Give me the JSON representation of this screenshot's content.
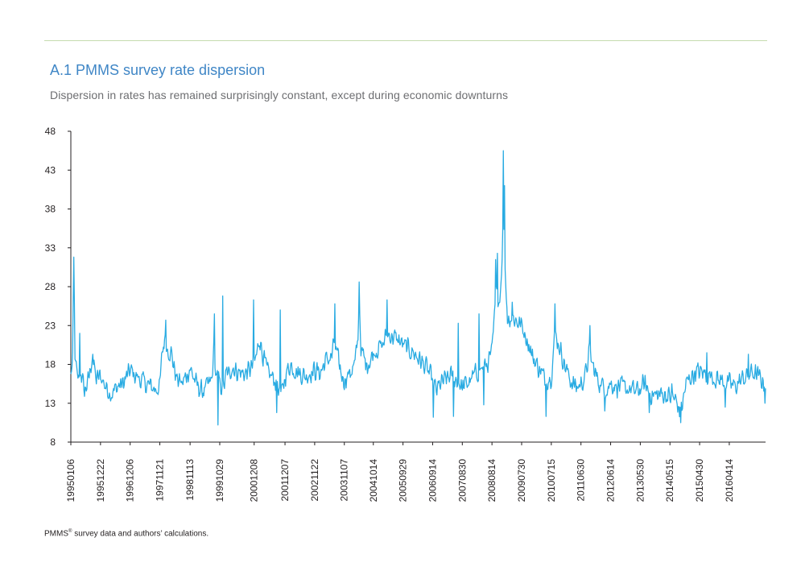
{
  "title": "A.1 PMMS survey rate dispersion",
  "subtitle": "Dispersion in rates has remained surprisingly constant, except during economic downturns",
  "source": {
    "prefix": "PMMS",
    "superscript": "®",
    "suffix": " survey data and authors’ calculations."
  },
  "colors": {
    "series": "#29abe2",
    "title": "#3f86c6",
    "rule": "#c5dcae",
    "axis": "#231f20"
  },
  "chart_data": {
    "type": "line",
    "title": "A.1 PMMS survey rate dispersion",
    "subtitle": "Dispersion in rates has remained surprisingly constant, except during economic downturns",
    "xlabel": "",
    "ylabel": "",
    "ylim": [
      8,
      48
    ],
    "yticks": [
      8,
      13,
      18,
      23,
      28,
      33,
      38,
      43,
      48
    ],
    "xlim": [
      "1995-01-06",
      "2017-06-16"
    ],
    "xtick_labels": [
      "19950106",
      "19951222",
      "19961206",
      "19971121",
      "19981113",
      "19991029",
      "20001208",
      "20011207",
      "20021122",
      "20031107",
      "20041014",
      "20050929",
      "20060914",
      "20070830",
      "20080814",
      "20090730",
      "20100715",
      "20110630",
      "20120614",
      "20130530",
      "20140515",
      "20150430",
      "20160414"
    ],
    "grid": false,
    "legend": "none",
    "frequency": "weekly",
    "series": [
      {
        "anchors": [
          [
            "1995-01-06",
            16.5
          ],
          [
            "1995-01-27",
            18.5
          ],
          [
            "1995-02-10",
            31.5
          ],
          [
            "1995-02-24",
            19
          ],
          [
            "1995-03-24",
            16
          ],
          [
            "1995-05-05",
            17
          ],
          [
            "1995-06-16",
            14.5
          ],
          [
            "1995-08-04",
            16
          ],
          [
            "1995-09-15",
            19
          ],
          [
            "1995-11-03",
            16
          ],
          [
            "1995-12-22",
            16.5
          ],
          [
            "1996-03-01",
            15
          ],
          [
            "1996-05-03",
            14.2
          ],
          [
            "1996-07-12",
            15.2
          ],
          [
            "1996-09-13",
            15.5
          ],
          [
            "1996-11-15",
            16.8
          ],
          [
            "1996-12-06",
            17.2
          ],
          [
            "1997-02-14",
            16.5
          ],
          [
            "1997-05-02",
            15.8
          ],
          [
            "1997-07-25",
            15.2
          ],
          [
            "1997-10-03",
            14.8
          ],
          [
            "1997-11-21",
            15.2
          ],
          [
            "1997-12-19",
            19.5
          ],
          [
            "1998-01-23",
            21.5
          ],
          [
            "1998-02-20",
            20
          ],
          [
            "1998-04-03",
            19.5
          ],
          [
            "1998-06-05",
            16.2
          ],
          [
            "1998-08-14",
            15.5
          ],
          [
            "1998-10-09",
            16.8
          ],
          [
            "1998-11-13",
            17.5
          ],
          [
            "1999-01-22",
            15.5
          ],
          [
            "1999-04-02",
            14.5
          ],
          [
            "1999-06-11",
            15.2
          ],
          [
            "1999-07-30",
            16
          ],
          [
            "1999-08-20",
            20
          ],
          [
            "1999-09-10",
            17
          ],
          [
            "1999-10-29",
            15.5
          ],
          [
            "1999-12-10",
            14.8
          ],
          [
            "2000-01-21",
            17
          ],
          [
            "2000-02-18",
            16.5
          ],
          [
            "2000-03-17",
            17.8
          ],
          [
            "2000-06-02",
            17
          ],
          [
            "2000-08-25",
            16.8
          ],
          [
            "2000-11-03",
            17.5
          ],
          [
            "2000-12-08",
            18
          ],
          [
            "2001-01-12",
            19.5
          ],
          [
            "2001-02-09",
            21.5
          ],
          [
            "2001-03-16",
            19.5
          ],
          [
            "2001-05-11",
            17
          ],
          [
            "2001-08-10",
            16
          ],
          [
            "2001-10-05",
            14.5
          ],
          [
            "2001-11-02",
            14.2
          ],
          [
            "2001-12-07",
            16.5
          ],
          [
            "2002-02-08",
            18
          ],
          [
            "2002-05-03",
            17
          ],
          [
            "2002-08-09",
            16.5
          ],
          [
            "2002-10-04",
            17
          ],
          [
            "2002-11-22",
            17.2
          ],
          [
            "2003-01-31",
            17
          ],
          [
            "2003-04-04",
            18.5
          ],
          [
            "2003-06-13",
            19
          ],
          [
            "2003-07-11",
            21
          ],
          [
            "2003-08-15",
            19
          ],
          [
            "2003-10-10",
            16.5
          ],
          [
            "2003-11-07",
            16
          ],
          [
            "2004-01-16",
            17
          ],
          [
            "2004-03-12",
            18
          ],
          [
            "2004-04-16",
            21.5
          ],
          [
            "2004-04-30",
            27
          ],
          [
            "2004-05-21",
            20
          ],
          [
            "2004-07-16",
            18
          ],
          [
            "2004-09-10",
            18.5
          ],
          [
            "2004-10-14",
            19.5
          ],
          [
            "2004-11-26",
            20
          ],
          [
            "2005-02-04",
            20.5
          ],
          [
            "2005-03-25",
            22
          ],
          [
            "2005-06-10",
            21.5
          ],
          [
            "2005-08-19",
            21
          ],
          [
            "2005-09-29",
            20.5
          ],
          [
            "2005-11-25",
            20
          ],
          [
            "2006-02-03",
            19.5
          ],
          [
            "2006-04-21",
            18.5
          ],
          [
            "2006-07-07",
            17.5
          ],
          [
            "2006-08-18",
            16.5
          ],
          [
            "2006-09-14",
            16
          ],
          [
            "2006-10-27",
            14.5
          ],
          [
            "2006-12-15",
            15.5
          ],
          [
            "2007-02-16",
            16
          ],
          [
            "2007-04-13",
            16.5
          ],
          [
            "2007-06-22",
            16
          ],
          [
            "2007-08-03",
            15.5
          ],
          [
            "2007-08-30",
            15
          ],
          [
            "2007-10-19",
            15.5
          ],
          [
            "2007-12-14",
            16
          ],
          [
            "2008-02-15",
            17
          ],
          [
            "2008-04-18",
            17.5
          ],
          [
            "2008-06-20",
            18
          ],
          [
            "2008-08-14",
            19.5
          ],
          [
            "2008-09-12",
            24
          ],
          [
            "2008-10-10",
            28
          ],
          [
            "2008-11-07",
            26
          ],
          [
            "2008-12-05",
            30
          ],
          [
            "2008-12-26",
            38
          ],
          [
            "2009-01-16",
            30
          ],
          [
            "2009-02-13",
            24
          ],
          [
            "2009-04-17",
            24
          ],
          [
            "2009-06-12",
            23.5
          ],
          [
            "2009-07-30",
            23
          ],
          [
            "2009-09-25",
            21.5
          ],
          [
            "2009-12-04",
            19
          ],
          [
            "2010-02-19",
            17.5
          ],
          [
            "2010-05-07",
            16
          ],
          [
            "2010-07-15",
            16.5
          ],
          [
            "2010-08-27",
            22
          ],
          [
            "2010-10-15",
            20.5
          ],
          [
            "2010-12-17",
            18
          ],
          [
            "2011-02-25",
            16
          ],
          [
            "2011-05-06",
            15
          ],
          [
            "2011-06-30",
            15.5
          ],
          [
            "2011-08-19",
            16.5
          ],
          [
            "2011-10-07",
            19.5
          ],
          [
            "2011-12-09",
            17
          ],
          [
            "2012-02-10",
            15.5
          ],
          [
            "2012-04-13",
            15
          ],
          [
            "2012-06-14",
            15.5
          ],
          [
            "2012-08-24",
            15.2
          ],
          [
            "2012-11-02",
            15
          ],
          [
            "2013-01-25",
            14.8
          ],
          [
            "2013-04-05",
            14.5
          ],
          [
            "2013-05-30",
            14.8
          ],
          [
            "2013-07-19",
            15.5
          ],
          [
            "2013-09-27",
            14.2
          ],
          [
            "2013-12-06",
            14
          ],
          [
            "2014-02-21",
            14.2
          ],
          [
            "2014-05-15",
            13.8
          ],
          [
            "2014-07-18",
            13.5
          ],
          [
            "2014-09-05",
            12
          ],
          [
            "2014-10-03",
            12.5
          ],
          [
            "2014-11-21",
            15.5
          ],
          [
            "2015-01-23",
            16.5
          ],
          [
            "2015-03-27",
            17
          ],
          [
            "2015-04-30",
            17
          ],
          [
            "2015-07-10",
            16.8
          ],
          [
            "2015-09-25",
            16.5
          ],
          [
            "2015-12-04",
            16
          ],
          [
            "2016-02-19",
            15.8
          ],
          [
            "2016-04-14",
            15.5
          ],
          [
            "2016-06-24",
            15.2
          ],
          [
            "2016-09-02",
            16
          ],
          [
            "2016-11-18",
            16.5
          ],
          [
            "2017-01-13",
            17
          ],
          [
            "2017-03-10",
            16.5
          ],
          [
            "2017-05-12",
            15.8
          ],
          [
            "2017-06-16",
            15.5
          ]
        ],
        "spikes": [
          [
            "1995-02-10",
            31.8
          ],
          [
            "1995-04-21",
            22
          ],
          [
            "1995-09-22",
            19.3
          ],
          [
            "1998-01-30",
            23.7
          ],
          [
            "1999-08-27",
            24.5
          ],
          [
            "1999-10-08",
            10.2
          ],
          [
            "1999-12-03",
            26.8
          ],
          [
            "2000-12-01",
            26.3
          ],
          [
            "2001-08-31",
            11.8
          ],
          [
            "2001-10-12",
            25
          ],
          [
            "2003-07-18",
            25.8
          ],
          [
            "2004-04-30",
            28.6
          ],
          [
            "2005-03-25",
            26.3
          ],
          [
            "2006-09-22",
            11.2
          ],
          [
            "2007-05-18",
            11.3
          ],
          [
            "2007-07-13",
            23.3
          ],
          [
            "2008-03-14",
            24.5
          ],
          [
            "2008-05-09",
            12.8
          ],
          [
            "2008-09-26",
            31.5
          ],
          [
            "2008-10-17",
            32.3
          ],
          [
            "2008-11-14",
            26
          ],
          [
            "2008-12-26",
            45.5
          ],
          [
            "2009-01-09",
            41
          ],
          [
            "2009-04-10",
            26
          ],
          [
            "2010-05-14",
            11.3
          ],
          [
            "2010-08-27",
            25.8
          ],
          [
            "2011-10-14",
            23
          ],
          [
            "2012-04-06",
            12
          ],
          [
            "2013-09-13",
            11.8
          ],
          [
            "2014-06-06",
            15.5
          ],
          [
            "2014-09-19",
            10.5
          ],
          [
            "2015-07-24",
            19.5
          ],
          [
            "2016-02-26",
            12.5
          ],
          [
            "2016-11-25",
            19.3
          ],
          [
            "2017-06-09",
            13
          ]
        ],
        "noise_amplitude": 1.6
      }
    ]
  }
}
